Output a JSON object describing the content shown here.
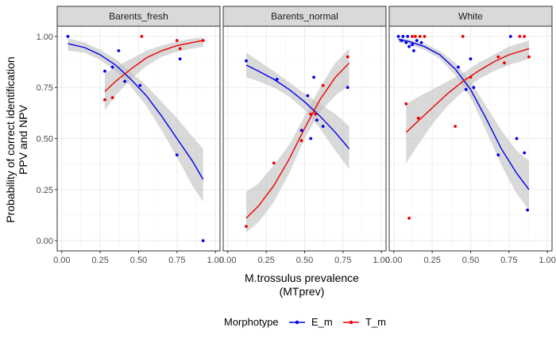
{
  "chart_data": {
    "type": "scatter",
    "facets": [
      "Barents_fresh",
      "Barents_normal",
      "White"
    ],
    "xlabel": [
      "M.trossulus prevalence",
      "(MTprev)"
    ],
    "ylabel": [
      "Probability of correct identification",
      "PPV and NPV"
    ],
    "xlim": [
      -0.03,
      1.03
    ],
    "ylim": [
      -0.05,
      1.05
    ],
    "xticks": [
      0.0,
      0.25,
      0.5,
      0.75,
      1.0
    ],
    "xtick_labels": [
      "0.00",
      "0.25",
      "0.50",
      "0.75",
      "1.00"
    ],
    "yticks": [
      0.0,
      0.25,
      0.5,
      0.75,
      1.0
    ],
    "ytick_labels": [
      "0.00",
      "0.25",
      "0.50",
      "0.75",
      "1.00"
    ],
    "grid": true,
    "legend": {
      "title": "Morphotype",
      "position": "bottom",
      "entries": [
        "E_m",
        "T_m"
      ]
    },
    "colors": {
      "E_m": "#0000ee",
      "T_m": "#ee0000",
      "ribbon": "#c0c0c0",
      "panel_bg": "#ffffff",
      "strip_bg": "#d9d9d9"
    },
    "panels": [
      {
        "name": "Barents_fresh",
        "series": [
          {
            "name": "E_m",
            "points": [
              [
                0.04,
                1.0
              ],
              [
                0.28,
                0.83
              ],
              [
                0.33,
                0.85
              ],
              [
                0.37,
                0.93
              ],
              [
                0.41,
                0.78
              ],
              [
                0.51,
                0.76
              ],
              [
                0.75,
                0.42
              ],
              [
                0.77,
                0.89
              ],
              [
                0.92,
                0.0
              ]
            ],
            "fit": [
              [
                0.04,
                0.965
              ],
              [
                0.15,
                0.945
              ],
              [
                0.25,
                0.91
              ],
              [
                0.35,
                0.86
              ],
              [
                0.45,
                0.79
              ],
              [
                0.55,
                0.71
              ],
              [
                0.65,
                0.61
              ],
              [
                0.75,
                0.5
              ],
              [
                0.85,
                0.39
              ],
              [
                0.92,
                0.3
              ]
            ],
            "ci": [
              [
                0.04,
                0.93,
                0.99
              ],
              [
                0.15,
                0.92,
                0.97
              ],
              [
                0.25,
                0.885,
                0.935
              ],
              [
                0.35,
                0.83,
                0.89
              ],
              [
                0.45,
                0.755,
                0.825
              ],
              [
                0.55,
                0.66,
                0.76
              ],
              [
                0.65,
                0.54,
                0.68
              ],
              [
                0.75,
                0.41,
                0.6
              ],
              [
                0.85,
                0.27,
                0.51
              ],
              [
                0.92,
                0.19,
                0.45
              ]
            ]
          },
          {
            "name": "T_m",
            "points": [
              [
                0.28,
                0.69
              ],
              [
                0.33,
                0.7
              ],
              [
                0.52,
                1.0
              ],
              [
                0.75,
                0.98
              ],
              [
                0.77,
                0.94
              ],
              [
                0.92,
                0.98
              ]
            ],
            "fit": [
              [
                0.28,
                0.73
              ],
              [
                0.35,
                0.78
              ],
              [
                0.45,
                0.84
              ],
              [
                0.55,
                0.895
              ],
              [
                0.65,
                0.93
              ],
              [
                0.75,
                0.955
              ],
              [
                0.85,
                0.97
              ],
              [
                0.92,
                0.98
              ]
            ],
            "ci": [
              [
                0.28,
                0.64,
                0.82
              ],
              [
                0.35,
                0.71,
                0.85
              ],
              [
                0.45,
                0.79,
                0.89
              ],
              [
                0.55,
                0.855,
                0.93
              ],
              [
                0.65,
                0.9,
                0.955
              ],
              [
                0.75,
                0.925,
                0.975
              ],
              [
                0.85,
                0.94,
                0.99
              ],
              [
                0.92,
                0.95,
                0.995
              ]
            ]
          }
        ]
      },
      {
        "name": "Barents_normal",
        "series": [
          {
            "name": "E_m",
            "points": [
              [
                0.12,
                0.88
              ],
              [
                0.32,
                0.79
              ],
              [
                0.48,
                0.54
              ],
              [
                0.52,
                0.71
              ],
              [
                0.54,
                0.5
              ],
              [
                0.56,
                0.8
              ],
              [
                0.58,
                0.59
              ],
              [
                0.62,
                0.56
              ],
              [
                0.78,
                0.75
              ]
            ],
            "fit": [
              [
                0.12,
                0.86
              ],
              [
                0.2,
                0.83
              ],
              [
                0.3,
                0.79
              ],
              [
                0.4,
                0.74
              ],
              [
                0.5,
                0.68
              ],
              [
                0.6,
                0.61
              ],
              [
                0.7,
                0.53
              ],
              [
                0.79,
                0.45
              ]
            ],
            "ci": [
              [
                0.12,
                0.8,
                0.92
              ],
              [
                0.2,
                0.78,
                0.88
              ],
              [
                0.3,
                0.75,
                0.83
              ],
              [
                0.4,
                0.705,
                0.775
              ],
              [
                0.5,
                0.64,
                0.72
              ],
              [
                0.6,
                0.55,
                0.67
              ],
              [
                0.7,
                0.44,
                0.62
              ],
              [
                0.79,
                0.35,
                0.56
              ]
            ]
          },
          {
            "name": "T_m",
            "points": [
              [
                0.12,
                0.07
              ],
              [
                0.3,
                0.38
              ],
              [
                0.48,
                0.49
              ],
              [
                0.54,
                0.62
              ],
              [
                0.57,
                0.62
              ],
              [
                0.62,
                0.76
              ],
              [
                0.78,
                0.9
              ]
            ],
            "fit": [
              [
                0.12,
                0.11
              ],
              [
                0.2,
                0.17
              ],
              [
                0.3,
                0.27
              ],
              [
                0.4,
                0.4
              ],
              [
                0.5,
                0.55
              ],
              [
                0.6,
                0.69
              ],
              [
                0.7,
                0.8
              ],
              [
                0.79,
                0.87
              ]
            ],
            "ci": [
              [
                0.12,
                0.04,
                0.24
              ],
              [
                0.2,
                0.09,
                0.28
              ],
              [
                0.3,
                0.19,
                0.37
              ],
              [
                0.4,
                0.33,
                0.47
              ],
              [
                0.5,
                0.5,
                0.61
              ],
              [
                0.6,
                0.63,
                0.75
              ],
              [
                0.7,
                0.71,
                0.87
              ],
              [
                0.79,
                0.76,
                0.94
              ]
            ]
          }
        ]
      },
      {
        "name": "White",
        "series": [
          {
            "name": "E_m",
            "points": [
              [
                0.03,
                1.0
              ],
              [
                0.05,
                0.98
              ],
              [
                0.06,
                1.0
              ],
              [
                0.08,
                0.97
              ],
              [
                0.09,
                1.0
              ],
              [
                0.1,
                0.95
              ],
              [
                0.12,
                0.96
              ],
              [
                0.13,
                0.93
              ],
              [
                0.15,
                0.98
              ],
              [
                0.18,
                0.97
              ],
              [
                0.42,
                0.85
              ],
              [
                0.47,
                0.74
              ],
              [
                0.5,
                0.89
              ],
              [
                0.52,
                0.75
              ],
              [
                0.68,
                0.42
              ],
              [
                0.8,
                0.5
              ],
              [
                0.85,
                0.43
              ],
              [
                0.87,
                0.15
              ],
              [
                0.76,
                1.0
              ]
            ],
            "fit": [
              [
                0.03,
                0.985
              ],
              [
                0.1,
                0.975
              ],
              [
                0.2,
                0.95
              ],
              [
                0.3,
                0.91
              ],
              [
                0.4,
                0.84
              ],
              [
                0.5,
                0.74
              ],
              [
                0.6,
                0.6
              ],
              [
                0.7,
                0.45
              ],
              [
                0.8,
                0.33
              ],
              [
                0.88,
                0.25
              ]
            ],
            "ci": [
              [
                0.03,
                0.97,
                0.995
              ],
              [
                0.1,
                0.96,
                0.985
              ],
              [
                0.2,
                0.935,
                0.965
              ],
              [
                0.3,
                0.89,
                0.93
              ],
              [
                0.4,
                0.81,
                0.87
              ],
              [
                0.5,
                0.7,
                0.78
              ],
              [
                0.6,
                0.54,
                0.66
              ],
              [
                0.7,
                0.37,
                0.54
              ],
              [
                0.8,
                0.23,
                0.44
              ],
              [
                0.88,
                0.15,
                0.39
              ]
            ]
          },
          {
            "name": "T_m",
            "points": [
              [
                0.08,
                0.67
              ],
              [
                0.1,
                0.11
              ],
              [
                0.12,
                1.0
              ],
              [
                0.14,
                1.0
              ],
              [
                0.16,
                0.6
              ],
              [
                0.17,
                1.0
              ],
              [
                0.2,
                1.0
              ],
              [
                0.4,
                0.56
              ],
              [
                0.45,
                1.0
              ],
              [
                0.5,
                0.8
              ],
              [
                0.68,
                0.9
              ],
              [
                0.72,
                0.87
              ],
              [
                0.82,
                1.0
              ],
              [
                0.85,
                1.0
              ],
              [
                0.88,
                0.9
              ]
            ],
            "fit": [
              [
                0.08,
                0.53
              ],
              [
                0.15,
                0.58
              ],
              [
                0.25,
                0.65
              ],
              [
                0.35,
                0.72
              ],
              [
                0.45,
                0.78
              ],
              [
                0.55,
                0.83
              ],
              [
                0.65,
                0.875
              ],
              [
                0.75,
                0.91
              ],
              [
                0.88,
                0.94
              ]
            ],
            "ci": [
              [
                0.08,
                0.38,
                0.67
              ],
              [
                0.15,
                0.46,
                0.7
              ],
              [
                0.25,
                0.57,
                0.74
              ],
              [
                0.35,
                0.66,
                0.78
              ],
              [
                0.45,
                0.73,
                0.82
              ],
              [
                0.55,
                0.79,
                0.87
              ],
              [
                0.65,
                0.83,
                0.91
              ],
              [
                0.75,
                0.86,
                0.95
              ],
              [
                0.88,
                0.89,
                0.98
              ]
            ]
          }
        ]
      }
    ]
  }
}
